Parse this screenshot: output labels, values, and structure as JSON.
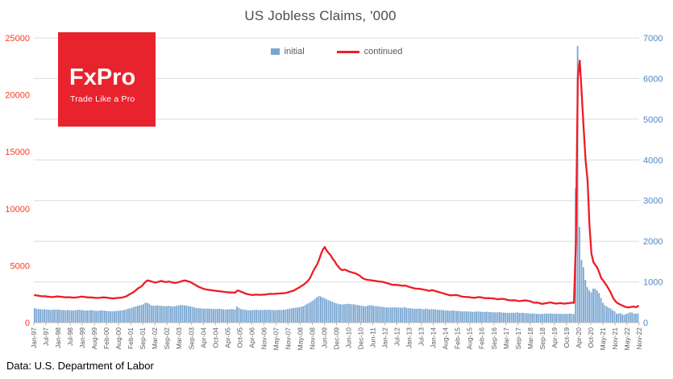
{
  "title": "US Jobless Claims, '000",
  "footer": "Data: U.S. Department of Labor",
  "logo": {
    "name": "FxPro",
    "tagline": "Trade Like a Pro",
    "bg": "#e8232e",
    "text_color": "#ffffff"
  },
  "legend": [
    {
      "label": "initial",
      "color": "#78a5d1",
      "type": "bar"
    },
    {
      "label": "continued",
      "color": "#ee1c25",
      "type": "line"
    }
  ],
  "chart_data": {
    "type": "bar",
    "subtype": "combo-bar-line",
    "title": "US Jobless Claims, '000",
    "x_frequency": "monthly",
    "x_start": "Jan-1997",
    "x_end": "Nov-2022",
    "grid": true,
    "grid_color": "#dcdcdc",
    "axis_line_color": "#b7b7b7",
    "x_label_color": "#595959",
    "legend_position": "top-center",
    "x_labels": [
      "Jan-97",
      "Jul-97",
      "Jan-98",
      "Jul-98",
      "Jan-99",
      "Aug-99",
      "Feb-00",
      "Aug-00",
      "Feb-01",
      "Sep-01",
      "Mar-02",
      "Sep-02",
      "Mar-03",
      "Sep-03",
      "Apr-04",
      "Oct-04",
      "Apr-05",
      "Oct-05",
      "Apr-06",
      "Nov-06",
      "May-07",
      "Nov-07",
      "May-08",
      "Nov-08",
      "Jun-09",
      "Dec-09",
      "Jun-10",
      "Dec-10",
      "Jun-11",
      "Jan-12",
      "Jul-12",
      "Jan-13",
      "Jul-13",
      "Jan-14",
      "Aug-14",
      "Feb-15",
      "Aug-15",
      "Feb-16",
      "Sep-16",
      "Mar-17",
      "Sep-17",
      "Mar-18",
      "Sep-18",
      "Apr-19",
      "Oct-19",
      "Apr-20",
      "Oct-20",
      "May-21",
      "Nov-21",
      "May-22",
      "Nov-22"
    ],
    "left_axis": {
      "min": 0,
      "max": 25000,
      "ticks": [
        0,
        5000,
        10000,
        15000,
        20000,
        25000
      ],
      "color": "#fb3a1d",
      "series": "continued"
    },
    "right_axis": {
      "min": 0,
      "max": 7000,
      "ticks": [
        0,
        1000,
        2000,
        3000,
        4000,
        5000,
        6000,
        7000
      ],
      "color": "#4e87c6",
      "series": "initial"
    },
    "series": [
      {
        "name": "initial",
        "type": "bar",
        "axis": "right",
        "color": "#78a5d1",
        "values": [
          355,
          340,
          332,
          327,
          322,
          326,
          320,
          316,
          311,
          313,
          318,
          324,
          320,
          314,
          309,
          305,
          301,
          309,
          305,
          300,
          298,
          303,
          311,
          318,
          310,
          301,
          296,
          298,
          300,
          304,
          299,
          291,
          286,
          291,
          296,
          301,
          291,
          286,
          281,
          279,
          276,
          281,
          286,
          291,
          296,
          301,
          311,
          321,
          341,
          351,
          366,
          381,
          396,
          411,
          421,
          431,
          451,
          491,
          481,
          461,
          421,
          411,
          416,
          421,
          416,
          411,
          406,
          401,
          406,
          411,
          401,
          396,
          401,
          411,
          421,
          431,
          426,
          421,
          416,
          406,
          396,
          386,
          371,
          361,
          356,
          351,
          346,
          341,
          339,
          346,
          341,
          336,
          331,
          333,
          336,
          339,
          331,
          326,
          321,
          323,
          326,
          331,
          326,
          321,
          396,
          361,
          331,
          321,
          316,
          306,
          303,
          301,
          306,
          311,
          316,
          311,
          306,
          309,
          311,
          313,
          316,
          311,
          309,
          306,
          306,
          311,
          309,
          311,
          313,
          321,
          331,
          341,
          351,
          356,
          366,
          371,
          376,
          386,
          401,
          431,
          461,
          481,
          511,
          541,
          581,
          621,
          651,
          641,
          621,
          601,
          571,
          551,
          531,
          511,
          491,
          471,
          461,
          451,
          446,
          451,
          456,
          461,
          456,
          451,
          446,
          441,
          431,
          421,
          416,
          406,
          401,
          411,
          421,
          426,
          411,
          406,
          401,
          396,
          391,
          381,
          376,
          371,
          369,
          371,
          373,
          376,
          371,
          369,
          366,
          363,
          381,
          361,
          356,
          351,
          346,
          341,
          339,
          343,
          341,
          333,
          326,
          346,
          331,
          326,
          331,
          326,
          321,
          316,
          311,
          313,
          301,
          299,
          296,
          291,
          293,
          296,
          291,
          286,
          283,
          279,
          273,
          276,
          271,
          273,
          269,
          263,
          266,
          271,
          273,
          269,
          263,
          259,
          266,
          263,
          259,
          256,
          253,
          251,
          253,
          256,
          249,
          243,
          241,
          239,
          236,
          241,
          243,
          241,
          251,
          236,
          239,
          241,
          233,
          229,
          226,
          223,
          221,
          219,
          216,
          211,
          209,
          213,
          219,
          223,
          221,
          223,
          219,
          216,
          213,
          219,
          216,
          213,
          211,
          213,
          216,
          219,
          213,
          211,
          3300,
          6800,
          2350,
          1540,
          1360,
          1050,
          870,
          790,
          745,
          835,
          835,
          785,
          725,
          605,
          485,
          425,
          395,
          365,
          345,
          305,
          275,
          215,
          221,
          232,
          202,
          192,
          211,
          231,
          251,
          246,
          221,
          216,
          226
        ]
      },
      {
        "name": "continued",
        "type": "line",
        "axis": "left",
        "color": "#ee1c25",
        "values": [
          2410,
          2380,
          2355,
          2325,
          2305,
          2315,
          2290,
          2270,
          2250,
          2240,
          2260,
          2285,
          2295,
          2270,
          2250,
          2230,
          2210,
          2230,
          2220,
          2205,
          2190,
          2200,
          2225,
          2255,
          2280,
          2260,
          2240,
          2220,
          2205,
          2210,
          2190,
          2175,
          2160,
          2170,
          2190,
          2210,
          2200,
          2180,
          2160,
          2140,
          2120,
          2140,
          2150,
          2165,
          2180,
          2205,
          2250,
          2305,
          2405,
          2505,
          2605,
          2705,
          2855,
          3005,
          3105,
          3205,
          3405,
          3605,
          3705,
          3655,
          3605,
          3555,
          3505,
          3555,
          3605,
          3655,
          3605,
          3555,
          3580,
          3605,
          3555,
          3505,
          3485,
          3505,
          3555,
          3605,
          3655,
          3705,
          3655,
          3605,
          3555,
          3455,
          3355,
          3255,
          3155,
          3080,
          3005,
          2955,
          2905,
          2880,
          2855,
          2830,
          2805,
          2780,
          2765,
          2750,
          2725,
          2700,
          2680,
          2660,
          2645,
          2650,
          2635,
          2620,
          2805,
          2780,
          2700,
          2650,
          2555,
          2505,
          2470,
          2440,
          2420,
          2440,
          2450,
          2440,
          2430,
          2440,
          2455,
          2470,
          2505,
          2520,
          2510,
          2520,
          2530,
          2550,
          2560,
          2570,
          2580,
          2605,
          2650,
          2705,
          2755,
          2805,
          2905,
          3005,
          3105,
          3205,
          3305,
          3455,
          3605,
          3805,
          4105,
          4505,
          4805,
          5105,
          5505,
          6005,
          6405,
          6635,
          6305,
          6105,
          5905,
          5605,
          5405,
          5105,
          4905,
          4705,
          4605,
          4655,
          4605,
          4505,
          4455,
          4405,
          4355,
          4305,
          4205,
          4105,
          3955,
          3855,
          3785,
          3755,
          3725,
          3705,
          3685,
          3655,
          3625,
          3605,
          3585,
          3565,
          3505,
          3455,
          3405,
          3355,
          3305,
          3315,
          3305,
          3285,
          3255,
          3225,
          3255,
          3205,
          3155,
          3105,
          3055,
          3005,
          2985,
          2965,
          2955,
          2925,
          2885,
          2855,
          2805,
          2785,
          2855,
          2805,
          2755,
          2705,
          2655,
          2605,
          2555,
          2505,
          2455,
          2405,
          2385,
          2405,
          2425,
          2405,
          2355,
          2305,
          2265,
          2255,
          2245,
          2235,
          2205,
          2185,
          2175,
          2205,
          2235,
          2225,
          2185,
          2155,
          2135,
          2145,
          2135,
          2125,
          2105,
          2065,
          2045,
          2065,
          2085,
          2065,
          2025,
          1985,
          1955,
          1945,
          1965,
          1945,
          1905,
          1885,
          1905,
          1925,
          1945,
          1925,
          1885,
          1845,
          1765,
          1745,
          1755,
          1725,
          1665,
          1645,
          1675,
          1705,
          1745,
          1765,
          1725,
          1685,
          1665,
          1695,
          1705,
          1685,
          1655,
          1685,
          1695,
          1725,
          1745,
          1725,
          7000,
          21500,
          23000,
          20000,
          17000,
          14200,
          12500,
          8500,
          6050,
          5300,
          5050,
          4800,
          4400,
          3900,
          3700,
          3450,
          3200,
          2900,
          2600,
          2200,
          1950,
          1750,
          1655,
          1555,
          1480,
          1400,
          1350,
          1325,
          1350,
          1400,
          1380,
          1350,
          1450
        ]
      }
    ]
  }
}
